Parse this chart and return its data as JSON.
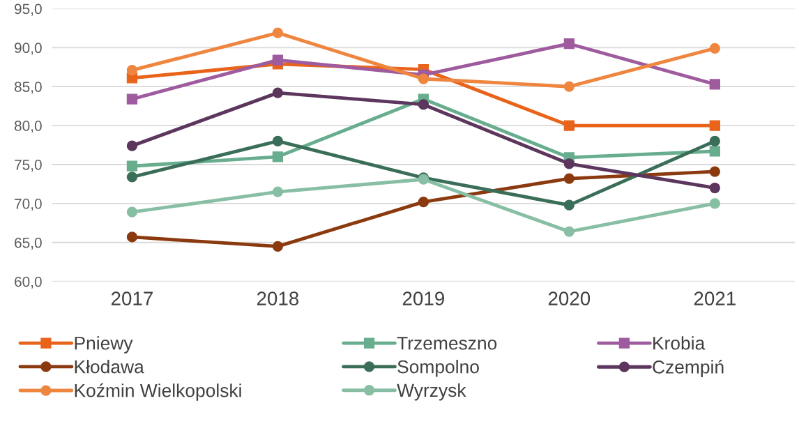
{
  "chart_data": {
    "type": "line",
    "categories": [
      "2017",
      "2018",
      "2019",
      "2020",
      "2021"
    ],
    "series": [
      {
        "name": "Pniewy",
        "color": "#e8641b",
        "marker": "square",
        "values": [
          86.1,
          87.9,
          87.2,
          80.0,
          80.0
        ]
      },
      {
        "name": "Trzemeszno",
        "color": "#67ad8e",
        "marker": "square",
        "values": [
          74.8,
          76.0,
          83.4,
          75.9,
          76.7
        ]
      },
      {
        "name": "Krobia",
        "color": "#9e5b9e",
        "marker": "square",
        "values": [
          83.4,
          88.4,
          86.5,
          90.5,
          85.3
        ]
      },
      {
        "name": "Kłodawa",
        "color": "#8b3a0f",
        "marker": "circle",
        "values": [
          65.7,
          64.5,
          70.2,
          73.2,
          74.1
        ]
      },
      {
        "name": "Sompolno",
        "color": "#3b6e58",
        "marker": "circle",
        "values": [
          73.4,
          78.0,
          73.3,
          69.8,
          78.0
        ]
      },
      {
        "name": "Czempiń",
        "color": "#5c365c",
        "marker": "circle",
        "values": [
          77.4,
          84.2,
          82.7,
          75.1,
          72.0
        ]
      },
      {
        "name": "Koźmin Wielkopolski",
        "color": "#ef8640",
        "marker": "circle",
        "values": [
          87.1,
          91.9,
          86.0,
          85.0,
          89.9
        ]
      },
      {
        "name": "Wyrzysk",
        "color": "#88bfa4",
        "marker": "circle",
        "values": [
          68.9,
          71.5,
          73.1,
          66.4,
          70.0
        ]
      }
    ],
    "ylim": [
      60,
      95
    ],
    "yticks": [
      {
        "value": 60,
        "label": "60,0"
      },
      {
        "value": 65,
        "label": "65,0"
      },
      {
        "value": 70,
        "label": "70,0"
      },
      {
        "value": 75,
        "label": "75,0"
      },
      {
        "value": 80,
        "label": "80,0"
      },
      {
        "value": 85,
        "label": "85,0"
      },
      {
        "value": 90,
        "label": "90,0"
      },
      {
        "value": 95,
        "label": "95,0"
      }
    ],
    "grid": "y",
    "legend": "bottom",
    "line_style": "solid"
  }
}
